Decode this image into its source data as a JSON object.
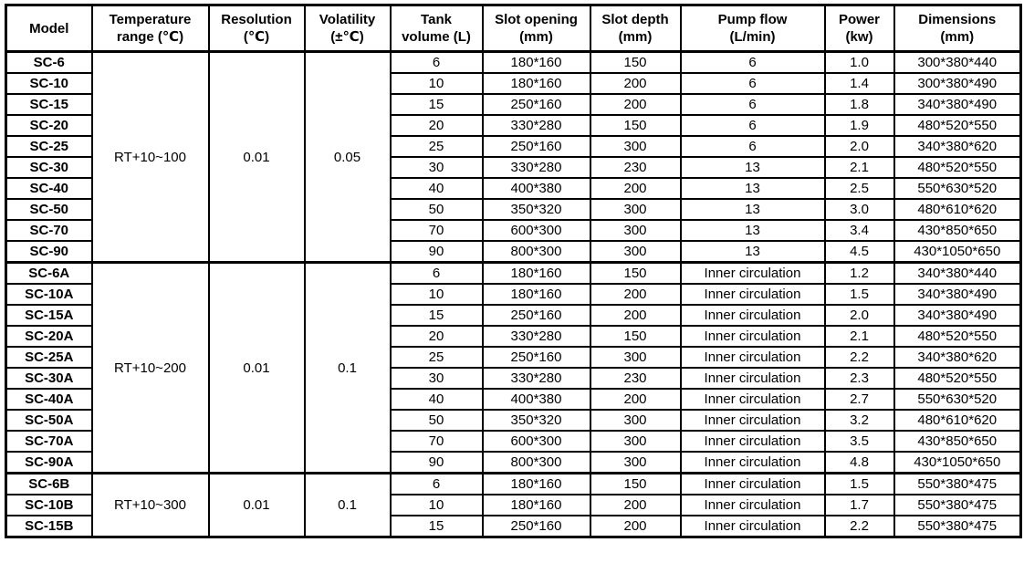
{
  "table": {
    "columns": [
      {
        "id": "model",
        "line1": "Model",
        "line2": ""
      },
      {
        "id": "temperature_range",
        "line1": "Temperature",
        "line2": "range (℃)"
      },
      {
        "id": "resolution",
        "line1": "Resolution",
        "line2": "(℃)"
      },
      {
        "id": "volatility",
        "line1": "Volatility",
        "line2": "(±℃)"
      },
      {
        "id": "tank_volume",
        "line1": "Tank",
        "line2": "volume (L)"
      },
      {
        "id": "slot_opening",
        "line1": "Slot opening",
        "line2": "(mm)"
      },
      {
        "id": "slot_depth",
        "line1": "Slot depth",
        "line2": "(mm)"
      },
      {
        "id": "pump_flow",
        "line1": "Pump flow",
        "line2": "(L/min)"
      },
      {
        "id": "power",
        "line1": "Power",
        "line2": "(kw)"
      },
      {
        "id": "dimensions",
        "line1": "Dimensions",
        "line2": "(mm)"
      }
    ],
    "groups": [
      {
        "temperature_range": "RT+10~100",
        "resolution": "0.01",
        "volatility": "0.05",
        "rows": [
          {
            "model": "SC-6",
            "tank_volume": "6",
            "slot_opening": "180*160",
            "slot_depth": "150",
            "pump_flow": "6",
            "power": "1.0",
            "dimensions": "300*380*440"
          },
          {
            "model": "SC-10",
            "tank_volume": "10",
            "slot_opening": "180*160",
            "slot_depth": "200",
            "pump_flow": "6",
            "power": "1.4",
            "dimensions": "300*380*490"
          },
          {
            "model": "SC-15",
            "tank_volume": "15",
            "slot_opening": "250*160",
            "slot_depth": "200",
            "pump_flow": "6",
            "power": "1.8",
            "dimensions": "340*380*490"
          },
          {
            "model": "SC-20",
            "tank_volume": "20",
            "slot_opening": "330*280",
            "slot_depth": "150",
            "pump_flow": "6",
            "power": "1.9",
            "dimensions": "480*520*550"
          },
          {
            "model": "SC-25",
            "tank_volume": "25",
            "slot_opening": "250*160",
            "slot_depth": "300",
            "pump_flow": "6",
            "power": "2.0",
            "dimensions": "340*380*620"
          },
          {
            "model": "SC-30",
            "tank_volume": "30",
            "slot_opening": "330*280",
            "slot_depth": "230",
            "pump_flow": "13",
            "power": "2.1",
            "dimensions": "480*520*550"
          },
          {
            "model": "SC-40",
            "tank_volume": "40",
            "slot_opening": "400*380",
            "slot_depth": "200",
            "pump_flow": "13",
            "power": "2.5",
            "dimensions": "550*630*520"
          },
          {
            "model": "SC-50",
            "tank_volume": "50",
            "slot_opening": "350*320",
            "slot_depth": "300",
            "pump_flow": "13",
            "power": "3.0",
            "dimensions": "480*610*620"
          },
          {
            "model": "SC-70",
            "tank_volume": "70",
            "slot_opening": "600*300",
            "slot_depth": "300",
            "pump_flow": "13",
            "power": "3.4",
            "dimensions": "430*850*650"
          },
          {
            "model": "SC-90",
            "tank_volume": "90",
            "slot_opening": "800*300",
            "slot_depth": "300",
            "pump_flow": "13",
            "power": "4.5",
            "dimensions": "430*1050*650"
          }
        ]
      },
      {
        "temperature_range": "RT+10~200",
        "resolution": "0.01",
        "volatility": "0.1",
        "rows": [
          {
            "model": "SC-6A",
            "tank_volume": "6",
            "slot_opening": "180*160",
            "slot_depth": "150",
            "pump_flow": "Inner circulation",
            "power": "1.2",
            "dimensions": "340*380*440"
          },
          {
            "model": "SC-10A",
            "tank_volume": "10",
            "slot_opening": "180*160",
            "slot_depth": "200",
            "pump_flow": "Inner circulation",
            "power": "1.5",
            "dimensions": "340*380*490"
          },
          {
            "model": "SC-15A",
            "tank_volume": "15",
            "slot_opening": "250*160",
            "slot_depth": "200",
            "pump_flow": "Inner circulation",
            "power": "2.0",
            "dimensions": "340*380*490"
          },
          {
            "model": "SC-20A",
            "tank_volume": "20",
            "slot_opening": "330*280",
            "slot_depth": "150",
            "pump_flow": "Inner circulation",
            "power": "2.1",
            "dimensions": "480*520*550"
          },
          {
            "model": "SC-25A",
            "tank_volume": "25",
            "slot_opening": "250*160",
            "slot_depth": "300",
            "pump_flow": "Inner circulation",
            "power": "2.2",
            "dimensions": "340*380*620"
          },
          {
            "model": "SC-30A",
            "tank_volume": "30",
            "slot_opening": "330*280",
            "slot_depth": "230",
            "pump_flow": "Inner circulation",
            "power": "2.3",
            "dimensions": "480*520*550"
          },
          {
            "model": "SC-40A",
            "tank_volume": "40",
            "slot_opening": "400*380",
            "slot_depth": "200",
            "pump_flow": "Inner circulation",
            "power": "2.7",
            "dimensions": "550*630*520"
          },
          {
            "model": "SC-50A",
            "tank_volume": "50",
            "slot_opening": "350*320",
            "slot_depth": "300",
            "pump_flow": "Inner circulation",
            "power": "3.2",
            "dimensions": "480*610*620"
          },
          {
            "model": "SC-70A",
            "tank_volume": "70",
            "slot_opening": "600*300",
            "slot_depth": "300",
            "pump_flow": "Inner circulation",
            "power": "3.5",
            "dimensions": "430*850*650"
          },
          {
            "model": "SC-90A",
            "tank_volume": "90",
            "slot_opening": "800*300",
            "slot_depth": "300",
            "pump_flow": "Inner circulation",
            "power": "4.8",
            "dimensions": "430*1050*650"
          }
        ]
      },
      {
        "temperature_range": "RT+10~300",
        "resolution": "0.01",
        "volatility": "0.1",
        "rows": [
          {
            "model": "SC-6B",
            "tank_volume": "6",
            "slot_opening": "180*160",
            "slot_depth": "150",
            "pump_flow": "Inner circulation",
            "power": "1.5",
            "dimensions": "550*380*475"
          },
          {
            "model": "SC-10B",
            "tank_volume": "10",
            "slot_opening": "180*160",
            "slot_depth": "200",
            "pump_flow": "Inner circulation",
            "power": "1.7",
            "dimensions": "550*380*475"
          },
          {
            "model": "SC-15B",
            "tank_volume": "15",
            "slot_opening": "250*160",
            "slot_depth": "200",
            "pump_flow": "Inner circulation",
            "power": "2.2",
            "dimensions": "550*380*475"
          }
        ]
      }
    ]
  }
}
